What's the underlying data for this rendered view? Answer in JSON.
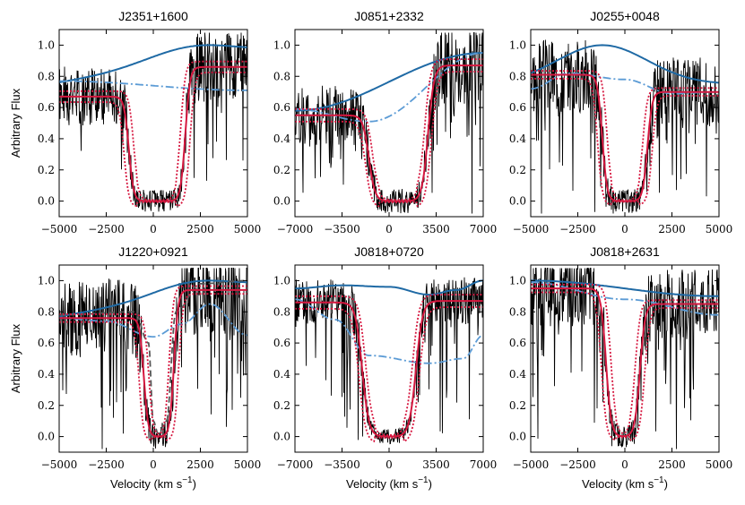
{
  "figure": {
    "ylabel": "Arbitrary Flux",
    "xlabel_main": "Velocity (km s",
    "xlabel_sup": "−1",
    "xlabel_close": ")",
    "colors": {
      "data": "#000000",
      "continuum": "#1f6aa5",
      "qso_continuum": "#5b9bd5",
      "model": "#d6173f",
      "comparison": "#555555"
    }
  },
  "chart_data": [
    {
      "id": "J2351",
      "type": "line",
      "title": "J2351+1600",
      "xlim": [
        -5000,
        5000
      ],
      "ylim": [
        -0.1,
        1.1
      ],
      "xticks": [
        -5000,
        -2500,
        0,
        2500,
        5000
      ],
      "xtick_labels": [
        "−5000",
        "−2500",
        "0",
        "2500",
        "5000"
      ],
      "yticks": [
        0.0,
        0.2,
        0.4,
        0.6,
        0.8,
        1.0
      ],
      "ytick_labels": [
        "0.0",
        "0.2",
        "0.4",
        "0.6",
        "0.8",
        "1.0"
      ],
      "show_ylabel": true,
      "show_xlabel": false,
      "model": {
        "trough_center": 200,
        "half_width": 1500,
        "edge_width": 500,
        "left_level": 0.67,
        "right_level": 0.86,
        "band": 0.035
      },
      "continuum": {
        "type": "peak",
        "x": [
          -5000,
          3000,
          5000
        ],
        "base": 0.76,
        "peak": 1.0,
        "peak_x": 3000,
        "sigma": 2500,
        "end": 0.95
      },
      "qso_continuum": {
        "x": [
          -5000,
          5000
        ],
        "y": [
          0.77,
          0.71
        ]
      },
      "noise_amp": 0.18,
      "seed": 1
    },
    {
      "id": "J0851",
      "type": "line",
      "title": "J0851+2332",
      "xlim": [
        -7000,
        7000
      ],
      "ylim": [
        -0.1,
        1.1
      ],
      "xticks": [
        -7000,
        -3500,
        0,
        3500,
        7000
      ],
      "xtick_labels": [
        "−7000",
        "−3500",
        "0",
        "3500",
        "7000"
      ],
      "yticks": [
        0.0,
        0.2,
        0.4,
        0.6,
        0.8,
        1.0
      ],
      "ytick_labels": [
        "0.0",
        "0.2",
        "0.4",
        "0.6",
        "0.8",
        "1.0"
      ],
      "show_ylabel": false,
      "show_xlabel": false,
      "model": {
        "trough_center": 700,
        "half_width": 2200,
        "edge_width": 900,
        "left_level": 0.55,
        "right_level": 0.87,
        "band": 0.04
      },
      "continuum": {
        "type": "linear",
        "x": [
          -7000,
          7000
        ],
        "y": [
          0.58,
          0.95
        ]
      },
      "qso_continuum": {
        "x": [
          -7000,
          -1500,
          7000
        ],
        "y": [
          0.59,
          0.51,
          0.95
        ]
      },
      "noise_amp": 0.2,
      "seed": 2
    },
    {
      "id": "J0255",
      "type": "line",
      "title": "J0255+0048",
      "xlim": [
        -5000,
        5000
      ],
      "ylim": [
        -0.1,
        1.1
      ],
      "xticks": [
        -5000,
        -2500,
        0,
        2500,
        5000
      ],
      "xtick_labels": [
        "−5000",
        "−2500",
        "0",
        "2500",
        "5000"
      ],
      "yticks": [
        0.0,
        0.2,
        0.4,
        0.6,
        0.8,
        1.0
      ],
      "ytick_labels": [
        "0.0",
        "0.2",
        "0.4",
        "0.6",
        "0.8",
        "1.0"
      ],
      "show_ylabel": false,
      "show_xlabel": false,
      "model": {
        "trough_center": 0,
        "half_width": 1200,
        "edge_width": 500,
        "left_level": 0.81,
        "right_level": 0.7,
        "band": 0.025
      },
      "continuum": {
        "type": "peak",
        "base": 0.75,
        "peak": 1.0,
        "peak_x": -1200,
        "sigma": 2400,
        "end": 0.75
      },
      "qso_continuum": {
        "x": [
          -5000,
          -3000,
          0,
          2500,
          5000
        ],
        "y": [
          0.72,
          0.82,
          0.78,
          0.69,
          0.7
        ]
      },
      "noise_amp": 0.2,
      "seed": 3
    },
    {
      "id": "J1220",
      "type": "line",
      "title": "J1220+0921",
      "xlim": [
        -5000,
        5000
      ],
      "ylim": [
        -0.1,
        1.1
      ],
      "xticks": [
        -5000,
        -2500,
        0,
        2500,
        5000
      ],
      "xtick_labels": [
        "−5000",
        "−2500",
        "0",
        "2500",
        "5000"
      ],
      "yticks": [
        0.0,
        0.2,
        0.4,
        0.6,
        0.8,
        1.0
      ],
      "ytick_labels": [
        "0.0",
        "0.2",
        "0.4",
        "0.6",
        "0.8",
        "1.0"
      ],
      "show_ylabel": true,
      "show_xlabel": true,
      "model": {
        "trough_center": 300,
        "half_width": 800,
        "edge_width": 450,
        "left_level": 0.76,
        "right_level": 0.94,
        "band": 0.025
      },
      "continuum": {
        "type": "peak",
        "base": 0.77,
        "peak": 1.0,
        "peak_x": 3000,
        "sigma": 2200,
        "end": 0.97
      },
      "qso_continuum": {
        "x": [
          -5000,
          -2500,
          0,
          1500,
          3000,
          5000
        ],
        "y": [
          0.76,
          0.74,
          0.64,
          0.72,
          0.85,
          0.65
        ]
      },
      "comparison": {
        "x": [
          -5000,
          -1000,
          -250,
          0,
          250,
          700,
          1200,
          2500,
          5000
        ],
        "y": [
          0.78,
          0.8,
          0.6,
          0.1,
          0.02,
          0.1,
          0.8,
          0.98,
          1.0
        ]
      },
      "noise_amp": 0.22,
      "seed": 4
    },
    {
      "id": "J0818a",
      "type": "line",
      "title": "J0818+0720",
      "xlim": [
        -7000,
        7000
      ],
      "ylim": [
        -0.1,
        1.1
      ],
      "xticks": [
        -7000,
        -3500,
        0,
        3500,
        7000
      ],
      "xtick_labels": [
        "−7000",
        "−3500",
        "0",
        "3500",
        "7000"
      ],
      "yticks": [
        0.0,
        0.2,
        0.4,
        0.6,
        0.8,
        1.0
      ],
      "ytick_labels": [
        "0.0",
        "0.2",
        "0.4",
        "0.6",
        "0.8",
        "1.0"
      ],
      "show_ylabel": false,
      "show_xlabel": true,
      "model": {
        "trough_center": 0,
        "half_width": 2000,
        "edge_width": 1000,
        "left_level": 0.86,
        "right_level": 0.87,
        "band": 0.04
      },
      "continuum": {
        "type": "sine",
        "x": [
          -7000,
          -3500,
          0,
          3000,
          5000,
          7000
        ],
        "y": [
          0.95,
          0.97,
          0.96,
          0.91,
          0.94,
          1.0
        ]
      },
      "qso_continuum": {
        "x": [
          -7000,
          -4000,
          -1500,
          3000,
          5500,
          7000
        ],
        "y": [
          0.88,
          0.75,
          0.52,
          0.47,
          0.5,
          0.65
        ]
      },
      "noise_amp": 0.12,
      "seed": 5
    },
    {
      "id": "J0818b",
      "type": "line",
      "title": "J0818+2631",
      "xlim": [
        -5000,
        5000
      ],
      "ylim": [
        -0.1,
        1.1
      ],
      "xticks": [
        -5000,
        -2500,
        0,
        2500,
        5000
      ],
      "xtick_labels": [
        "−5000",
        "−2500",
        "0",
        "2500",
        "5000"
      ],
      "yticks": [
        0.0,
        0.2,
        0.4,
        0.6,
        0.8,
        1.0
      ],
      "ytick_labels": [
        "0.0",
        "0.2",
        "0.4",
        "0.6",
        "0.8",
        "1.0"
      ],
      "show_ylabel": false,
      "show_xlabel": true,
      "model": {
        "trough_center": -100,
        "half_width": 900,
        "edge_width": 550,
        "left_level": 0.95,
        "right_level": 0.85,
        "band": 0.025
      },
      "continuum": {
        "type": "linear",
        "x": [
          -5000,
          5000
        ],
        "y": [
          1.0,
          0.9
        ]
      },
      "qso_continuum": {
        "x": [
          -5000,
          0,
          5000
        ],
        "y": [
          0.99,
          0.88,
          0.78
        ]
      },
      "noise_amp": 0.18,
      "seed": 6
    }
  ]
}
